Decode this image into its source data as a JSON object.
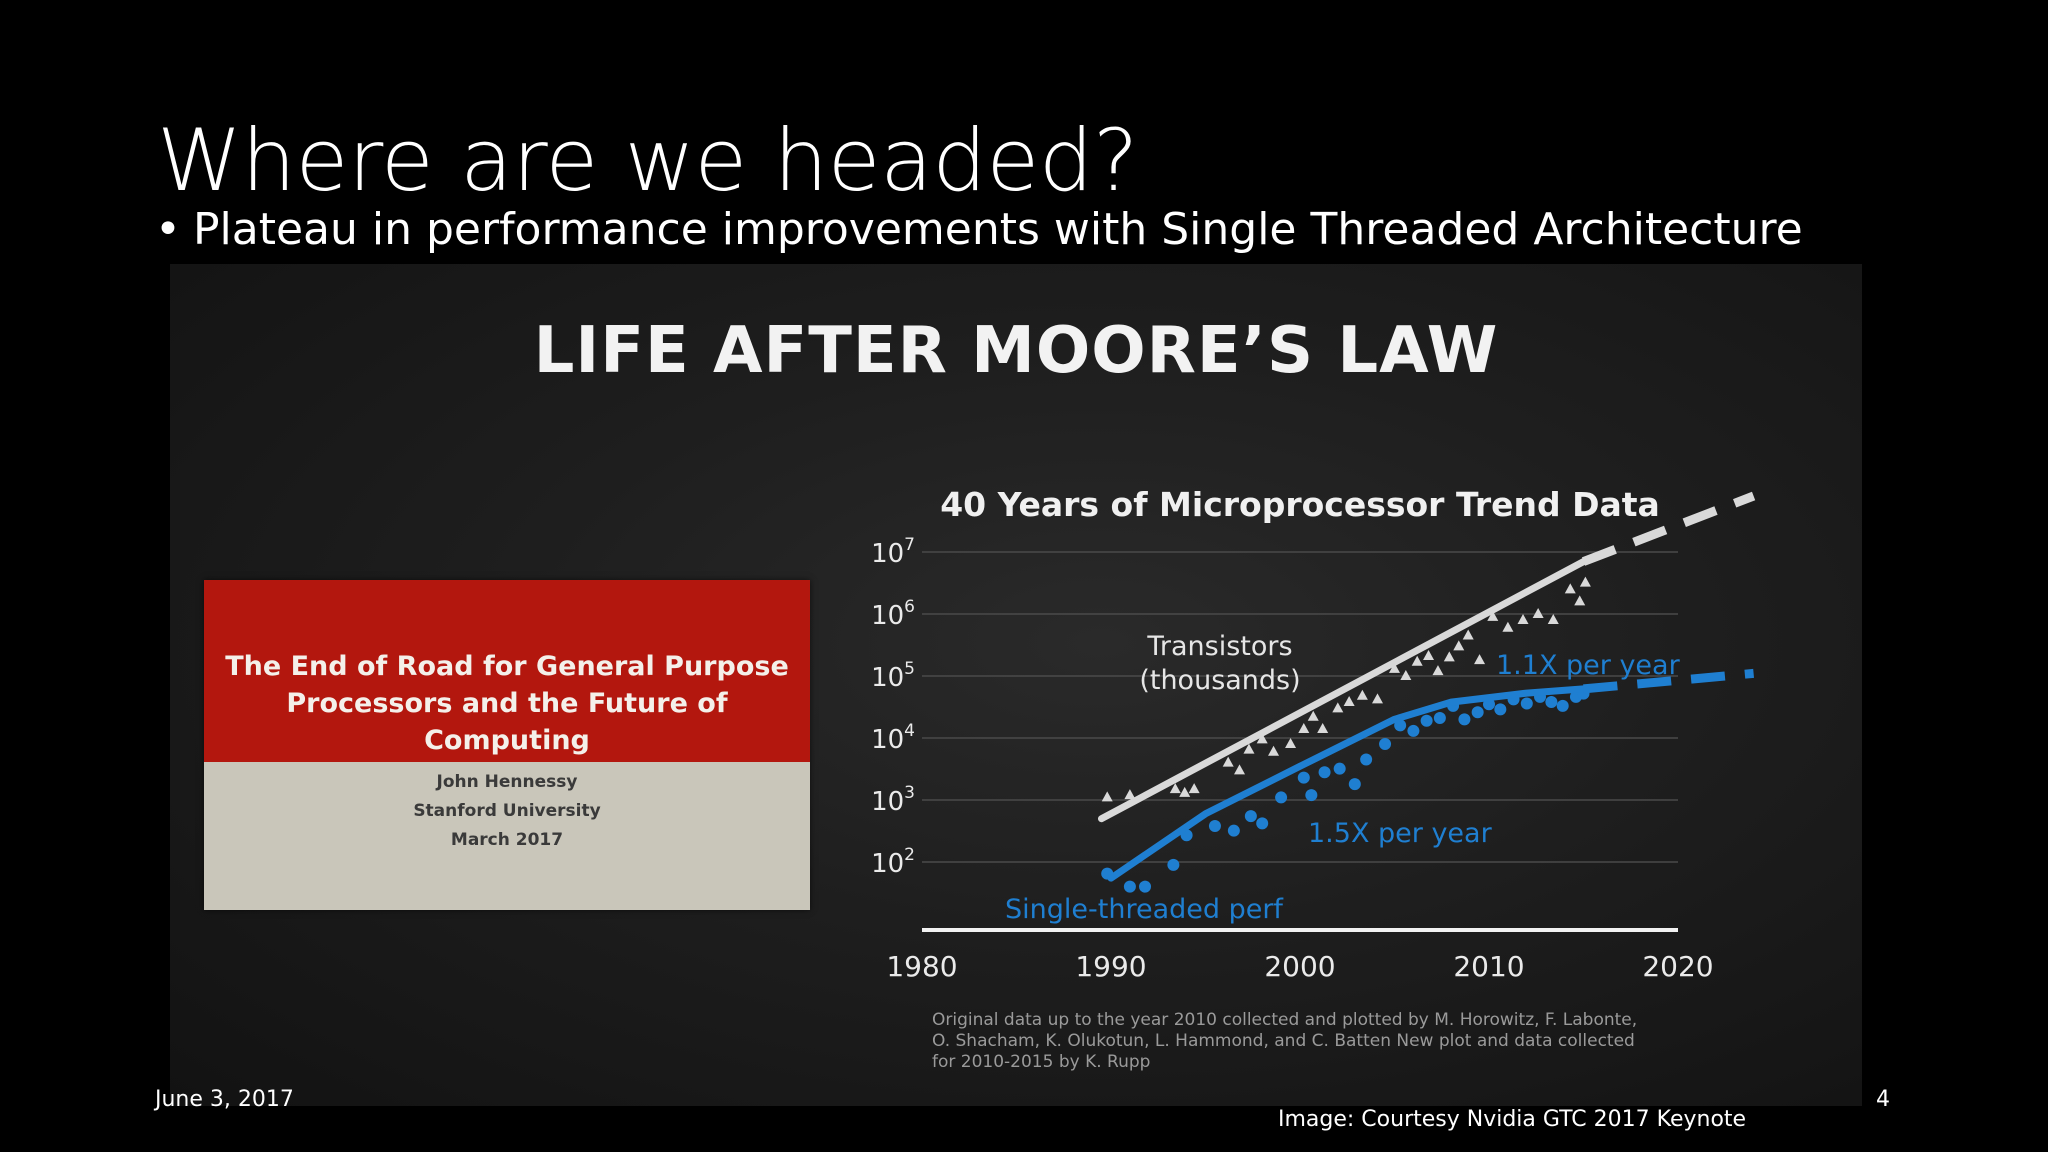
{
  "slide": {
    "title": "Where are we headed?",
    "bullet": "Plateau in performance improvements with Single Threaded Architecture",
    "date": "June 3, 2017",
    "page_number": "4",
    "credit": "Image: Courtesy Nvidia GTC 2017 Keynote"
  },
  "picture": {
    "title": "LIFE AFTER MOORE’S LAW",
    "book": {
      "title_lines": [
        "The End of Road for General Purpose",
        "Processors and the Future of",
        "Computing"
      ],
      "author": "John Hennessy",
      "affiliation": "Stanford University",
      "date": "March 2017"
    }
  },
  "chart_data": {
    "type": "scatter",
    "title": "40 Years of Microprocessor Trend Data",
    "y_scale": "log",
    "xlim": [
      1980,
      2020
    ],
    "ylim": [
      10,
      10000000
    ],
    "x_ticks": [
      "1980",
      "1990",
      "2000",
      "2010",
      "2020"
    ],
    "y_ticks": [
      {
        "base": "10",
        "exp": "7",
        "value": 10000000
      },
      {
        "base": "10",
        "exp": "6",
        "value": 1000000
      },
      {
        "base": "10",
        "exp": "5",
        "value": 100000
      },
      {
        "base": "10",
        "exp": "4",
        "value": 10000
      },
      {
        "base": "10",
        "exp": "3",
        "value": 1000
      },
      {
        "base": "10",
        "exp": "2",
        "value": 100
      }
    ],
    "grid": true,
    "series": [
      {
        "name": "Transistors (thousands)",
        "label_lines": [
          "Transistors",
          "(thousands)"
        ],
        "color": "#d9d9d9",
        "marker": "triangle",
        "trend_label": "",
        "trend": [
          [
            1989.5,
            500
          ],
          [
            2015,
            7000000
          ]
        ],
        "projection": [
          [
            2015,
            7000000
          ],
          [
            2024,
            80000000
          ]
        ],
        "points": [
          [
            1989.8,
            1100
          ],
          [
            1991,
            1200
          ],
          [
            1993.4,
            1500
          ],
          [
            1993.9,
            1300
          ],
          [
            1994.4,
            1500
          ],
          [
            1996.2,
            4000
          ],
          [
            1996.8,
            3000
          ],
          [
            1997.3,
            6500
          ],
          [
            1998.0,
            9500
          ],
          [
            1998.6,
            6000
          ],
          [
            1999.5,
            8000
          ],
          [
            2000.2,
            14000
          ],
          [
            2000.7,
            22000
          ],
          [
            2001.2,
            14000
          ],
          [
            2002.0,
            30000
          ],
          [
            2002.6,
            38000
          ],
          [
            2003.3,
            48000
          ],
          [
            2004.1,
            42000
          ],
          [
            2005.0,
            130000
          ],
          [
            2005.6,
            100000
          ],
          [
            2006.2,
            170000
          ],
          [
            2006.8,
            210000
          ],
          [
            2007.3,
            120000
          ],
          [
            2007.9,
            200000
          ],
          [
            2008.4,
            300000
          ],
          [
            2008.9,
            450000
          ],
          [
            2009.5,
            180000
          ],
          [
            2010.2,
            900000
          ],
          [
            2011.0,
            600000
          ],
          [
            2011.8,
            800000
          ],
          [
            2012.6,
            1000000
          ],
          [
            2013.4,
            800000
          ],
          [
            2014.3,
            2500000
          ],
          [
            2014.8,
            1600000
          ],
          [
            2015.1,
            3200000
          ]
        ]
      },
      {
        "name": "Single-threaded perf",
        "label_lines": [
          "Single-threaded perf"
        ],
        "color": "#1f7fd1",
        "marker": "circle",
        "trend_label": "1.5X per year",
        "trend": [
          [
            1990,
            55
          ],
          [
            1995,
            600
          ],
          [
            2000,
            3500
          ],
          [
            2005,
            20000
          ],
          [
            2008,
            38000
          ],
          [
            2012,
            53000
          ],
          [
            2015,
            62000
          ]
        ],
        "trend_label_2": "1.1X per year",
        "projection": [
          [
            2015,
            62000
          ],
          [
            2024,
            110000
          ]
        ],
        "points": [
          [
            1989.8,
            65
          ],
          [
            1991.0,
            40
          ],
          [
            1991.8,
            40
          ],
          [
            1993.3,
            90
          ],
          [
            1994.0,
            270
          ],
          [
            1995.5,
            380
          ],
          [
            1996.5,
            320
          ],
          [
            1997.4,
            550
          ],
          [
            1998.0,
            420
          ],
          [
            1999.0,
            1100
          ],
          [
            2000.2,
            2300
          ],
          [
            2000.6,
            1200
          ],
          [
            2001.3,
            2800
          ],
          [
            2002.1,
            3200
          ],
          [
            2002.9,
            1800
          ],
          [
            2003.5,
            4500
          ],
          [
            2004.5,
            8000
          ],
          [
            2005.3,
            16000
          ],
          [
            2006.0,
            13000
          ],
          [
            2006.7,
            19000
          ],
          [
            2007.4,
            21000
          ],
          [
            2008.1,
            33000
          ],
          [
            2008.7,
            20000
          ],
          [
            2009.4,
            26000
          ],
          [
            2010.0,
            35000
          ],
          [
            2010.6,
            29000
          ],
          [
            2011.3,
            42000
          ],
          [
            2012.0,
            36000
          ],
          [
            2012.7,
            46000
          ],
          [
            2013.3,
            38000
          ],
          [
            2013.9,
            33000
          ],
          [
            2014.6,
            46000
          ],
          [
            2015.0,
            52000
          ]
        ]
      }
    ],
    "footnote_lines": [
      "Original data up to the year 2010 collected and plotted by M. Horowitz, F. Labonte,",
      "O. Shacham, K. Olukotun, L. Hammond, and C. Batten New plot and data collected",
      "for 2010-2015 by K. Rupp"
    ]
  }
}
